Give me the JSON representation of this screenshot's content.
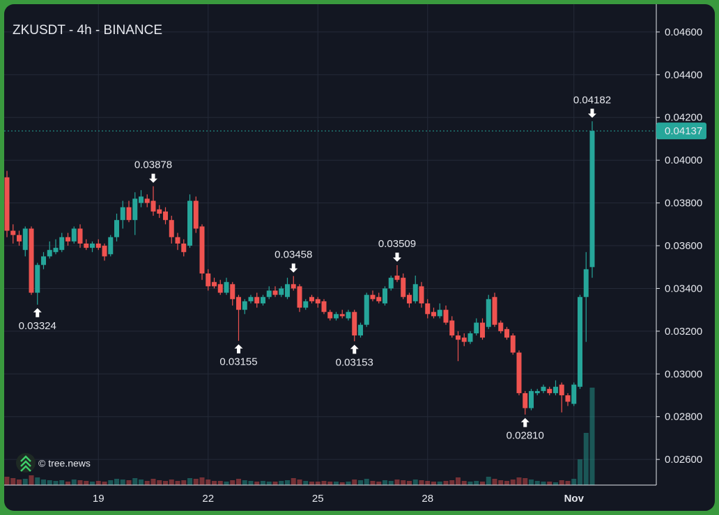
{
  "chart_data": {
    "type": "candlestick",
    "title": "ZKUSDT - 4h - BINANCE",
    "watermark": "© tree.news",
    "up_color": "#26a69a",
    "down_color": "#ef5350",
    "grid": true,
    "ylim": [
      0.0248,
      0.0473
    ],
    "yticks": [
      {
        "value": 0.026,
        "label": "0.02600"
      },
      {
        "value": 0.028,
        "label": "0.02800"
      },
      {
        "value": 0.03,
        "label": "0.03000"
      },
      {
        "value": 0.032,
        "label": "0.03200"
      },
      {
        "value": 0.034,
        "label": "0.03400"
      },
      {
        "value": 0.036,
        "label": "0.03600"
      },
      {
        "value": 0.038,
        "label": "0.03800"
      },
      {
        "value": 0.04,
        "label": "0.04000"
      },
      {
        "value": 0.042,
        "label": "0.04200"
      },
      {
        "value": 0.044,
        "label": "0.04400"
      },
      {
        "value": 0.046,
        "label": "0.04600"
      }
    ],
    "categories": [
      null,
      null,
      null,
      null,
      null,
      null,
      null,
      null,
      null,
      null,
      null,
      null,
      null,
      null,
      null,
      "19",
      null,
      null,
      null,
      null,
      null,
      null,
      null,
      null,
      null,
      null,
      null,
      null,
      null,
      null,
      null,
      null,
      null,
      "22",
      null,
      null,
      null,
      null,
      null,
      null,
      null,
      null,
      null,
      null,
      null,
      null,
      null,
      null,
      null,
      null,
      null,
      "25",
      null,
      null,
      null,
      null,
      null,
      null,
      null,
      null,
      null,
      null,
      null,
      null,
      null,
      null,
      null,
      null,
      null,
      "28",
      null,
      null,
      null,
      null,
      null,
      null,
      null,
      null,
      null,
      null,
      null,
      null,
      null,
      null,
      null,
      null,
      null,
      null,
      null,
      null,
      null,
      null,
      null,
      "Nov",
      null,
      null,
      null
    ],
    "ohlc": [
      [
        0.0392,
        0.0395,
        0.0364,
        0.0367
      ],
      [
        0.0367,
        0.037,
        0.0361,
        0.0365
      ],
      [
        0.0365,
        0.0367,
        0.036,
        0.0362
      ],
      [
        0.0358,
        0.0369,
        0.0355,
        0.0368
      ],
      [
        0.0368,
        0.0369,
        0.0337,
        0.0338
      ],
      [
        0.0338,
        0.0352,
        0.03324,
        0.0351
      ],
      [
        0.0351,
        0.0357,
        0.0349,
        0.0355
      ],
      [
        0.0355,
        0.0362,
        0.0354,
        0.0358
      ],
      [
        0.0357,
        0.0363,
        0.0356,
        0.0359
      ],
      [
        0.0358,
        0.0366,
        0.0357,
        0.0364
      ],
      [
        0.0364,
        0.0366,
        0.036,
        0.0362
      ],
      [
        0.0362,
        0.0369,
        0.0361,
        0.0368
      ],
      [
        0.0368,
        0.037,
        0.0359,
        0.0361
      ],
      [
        0.0361,
        0.0363,
        0.0358,
        0.0359
      ],
      [
        0.0359,
        0.0362,
        0.0357,
        0.0361
      ],
      [
        0.0361,
        0.0363,
        0.0358,
        0.0359
      ],
      [
        0.036,
        0.0361,
        0.0353,
        0.0355
      ],
      [
        0.0356,
        0.0365,
        0.0355,
        0.0364
      ],
      [
        0.0364,
        0.0375,
        0.0362,
        0.0372
      ],
      [
        0.0372,
        0.0381,
        0.0368,
        0.0378
      ],
      [
        0.0378,
        0.0381,
        0.0371,
        0.0372
      ],
      [
        0.0372,
        0.0385,
        0.0365,
        0.0382
      ],
      [
        0.038,
        0.0386,
        0.0378,
        0.0383
      ],
      [
        0.0382,
        0.0384,
        0.0378,
        0.038
      ],
      [
        0.0381,
        0.03878,
        0.0374,
        0.0376
      ],
      [
        0.0377,
        0.0379,
        0.0373,
        0.0375
      ],
      [
        0.0376,
        0.0378,
        0.037,
        0.0372
      ],
      [
        0.0372,
        0.0374,
        0.0361,
        0.0364
      ],
      [
        0.0364,
        0.0366,
        0.0358,
        0.0361
      ],
      [
        0.0361,
        0.0363,
        0.0355,
        0.0357
      ],
      [
        0.036,
        0.0384,
        0.0359,
        0.0381
      ],
      [
        0.0381,
        0.0383,
        0.0366,
        0.0368
      ],
      [
        0.0369,
        0.037,
        0.0344,
        0.0347
      ],
      [
        0.0347,
        0.0349,
        0.0339,
        0.0341
      ],
      [
        0.0343,
        0.0345,
        0.034,
        0.0341
      ],
      [
        0.0342,
        0.0344,
        0.0337,
        0.0338
      ],
      [
        0.0338,
        0.0345,
        0.0337,
        0.0343
      ],
      [
        0.0342,
        0.0343,
        0.0332,
        0.0335
      ],
      [
        0.0336,
        0.0337,
        0.03155,
        0.033
      ],
      [
        0.033,
        0.0335,
        0.0328,
        0.0334
      ],
      [
        0.0334,
        0.0337,
        0.0333,
        0.0336
      ],
      [
        0.0336,
        0.0338,
        0.0331,
        0.0333
      ],
      [
        0.0333,
        0.0337,
        0.0332,
        0.0336
      ],
      [
        0.0336,
        0.0341,
        0.0335,
        0.0339
      ],
      [
        0.0339,
        0.0341,
        0.0336,
        0.0337
      ],
      [
        0.0337,
        0.0341,
        0.0336,
        0.034
      ],
      [
        0.0336,
        0.0345,
        0.0335,
        0.0342
      ],
      [
        0.0342,
        0.03458,
        0.0339,
        0.034
      ],
      [
        0.0341,
        0.0342,
        0.0329,
        0.0331
      ],
      [
        0.0331,
        0.0335,
        0.033,
        0.0334
      ],
      [
        0.0336,
        0.0337,
        0.0333,
        0.0334
      ],
      [
        0.0335,
        0.0336,
        0.0331,
        0.0333
      ],
      [
        0.0334,
        0.0335,
        0.0328,
        0.0329
      ],
      [
        0.0329,
        0.033,
        0.0325,
        0.0326
      ],
      [
        0.0326,
        0.0329,
        0.0325,
        0.0328
      ],
      [
        0.0328,
        0.033,
        0.0326,
        0.0327
      ],
      [
        0.0326,
        0.033,
        0.0325,
        0.0329
      ],
      [
        0.0329,
        0.033,
        0.03153,
        0.0318
      ],
      [
        0.0318,
        0.0324,
        0.0317,
        0.0323
      ],
      [
        0.0323,
        0.0338,
        0.0322,
        0.0337
      ],
      [
        0.0337,
        0.0339,
        0.0334,
        0.0335
      ],
      [
        0.0336,
        0.0338,
        0.0333,
        0.0334
      ],
      [
        0.0333,
        0.0341,
        0.0332,
        0.034
      ],
      [
        0.034,
        0.0346,
        0.0339,
        0.0345
      ],
      [
        0.0346,
        0.03509,
        0.0343,
        0.0344
      ],
      [
        0.0345,
        0.0347,
        0.0335,
        0.0336
      ],
      [
        0.0337,
        0.0338,
        0.0331,
        0.0333
      ],
      [
        0.0334,
        0.0346,
        0.0333,
        0.0342
      ],
      [
        0.0341,
        0.0343,
        0.0331,
        0.0333
      ],
      [
        0.0333,
        0.0335,
        0.0326,
        0.0328
      ],
      [
        0.0329,
        0.0331,
        0.0326,
        0.0327
      ],
      [
        0.0327,
        0.0333,
        0.0326,
        0.033
      ],
      [
        0.033,
        0.0332,
        0.0323,
        0.0324
      ],
      [
        0.0325,
        0.0327,
        0.0317,
        0.0318
      ],
      [
        0.0318,
        0.032,
        0.0306,
        0.0316
      ],
      [
        0.0317,
        0.0319,
        0.0313,
        0.0315
      ],
      [
        0.0315,
        0.032,
        0.0314,
        0.0319
      ],
      [
        0.0319,
        0.0326,
        0.0318,
        0.0324
      ],
      [
        0.0324,
        0.0326,
        0.0316,
        0.0317
      ],
      [
        0.0322,
        0.0337,
        0.0321,
        0.0335
      ],
      [
        0.0336,
        0.0338,
        0.0322,
        0.0323
      ],
      [
        0.0324,
        0.0325,
        0.0319,
        0.032
      ],
      [
        0.0321,
        0.0322,
        0.0316,
        0.0317
      ],
      [
        0.0318,
        0.0319,
        0.0309,
        0.031
      ],
      [
        0.031,
        0.0311,
        0.029,
        0.0291
      ],
      [
        0.0291,
        0.0292,
        0.0281,
        0.0284
      ],
      [
        0.0284,
        0.0293,
        0.0283,
        0.0292
      ],
      [
        0.0291,
        0.0293,
        0.029,
        0.0292
      ],
      [
        0.0292,
        0.0295,
        0.0291,
        0.0294
      ],
      [
        0.0293,
        0.0294,
        0.029,
        0.0291
      ],
      [
        0.0291,
        0.0297,
        0.029,
        0.0294
      ],
      [
        0.0295,
        0.0296,
        0.0282,
        0.029
      ],
      [
        0.029,
        0.0291,
        0.0285,
        0.0287
      ],
      [
        0.0286,
        0.0296,
        0.0285,
        0.0295
      ],
      [
        0.0294,
        0.0337,
        0.0293,
        0.0336
      ],
      [
        0.0336,
        0.0357,
        0.0315,
        0.0349
      ],
      [
        0.035,
        0.04182,
        0.0345,
        0.04137
      ]
    ],
    "volume": [
      12,
      10,
      8,
      9,
      14,
      11,
      8,
      7,
      6,
      7,
      5,
      8,
      7,
      6,
      5,
      6,
      5,
      7,
      9,
      8,
      7,
      10,
      8,
      6,
      9,
      7,
      6,
      8,
      6,
      7,
      10,
      9,
      11,
      8,
      6,
      6,
      5,
      7,
      9,
      7,
      6,
      5,
      6,
      5,
      5,
      6,
      7,
      10,
      8,
      6,
      5,
      5,
      6,
      5,
      5,
      4,
      5,
      8,
      7,
      9,
      6,
      5,
      7,
      6,
      8,
      7,
      6,
      8,
      7,
      6,
      5,
      5,
      6,
      7,
      11,
      6,
      5,
      6,
      5,
      12,
      9,
      7,
      6,
      8,
      11,
      10,
      8,
      6,
      5,
      5,
      4,
      7,
      6,
      9,
      37,
      75,
      140
    ],
    "markers": [
      0.03324,
      0.03878,
      0.03155,
      0.03458,
      0.03153,
      0.03509,
      {
        "value": 0.0281,
        "label": "0.02810"
      },
      0.04182
    ],
    "last_price": 0.04137
  }
}
